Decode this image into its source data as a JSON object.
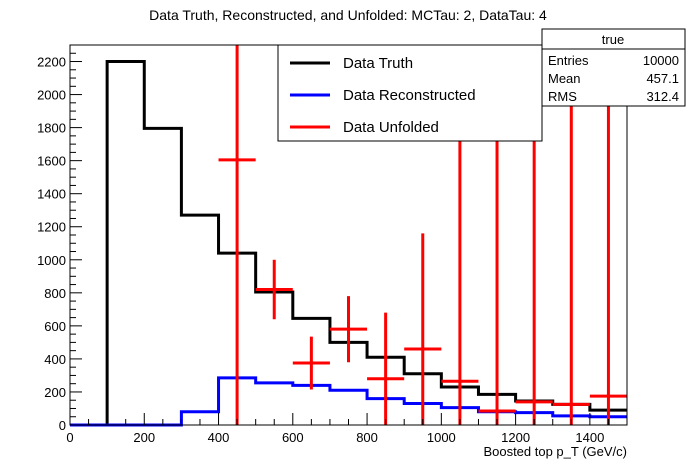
{
  "chart_data": {
    "type": "histogram",
    "title": "Data Truth, Reconstructed, and Unfolded: MCTau: 2, DataTau: 4",
    "xlabel": "Boosted top p_T (GeV/c)",
    "ylabel": "",
    "xlim": [
      0,
      1500
    ],
    "ylim": [
      0,
      2300
    ],
    "xticks": [
      0,
      200,
      400,
      600,
      800,
      1000,
      1200,
      1400
    ],
    "yticks": [
      0,
      200,
      400,
      600,
      800,
      1000,
      1200,
      1400,
      1600,
      1800,
      2000,
      2200
    ],
    "bin_edges": [
      0,
      100,
      200,
      300,
      400,
      500,
      600,
      700,
      800,
      900,
      1000,
      1100,
      1200,
      1300,
      1400,
      1500
    ],
    "series": [
      {
        "name": "Data Truth",
        "style": "step",
        "color": "#000000",
        "values": [
          0,
          2200,
          1795,
          1270,
          1040,
          805,
          645,
          500,
          410,
          310,
          230,
          185,
          145,
          125,
          90
        ]
      },
      {
        "name": "Data Reconstructed",
        "style": "step",
        "color": "#0000ff",
        "values": [
          0,
          0,
          0,
          80,
          285,
          255,
          240,
          210,
          160,
          130,
          105,
          80,
          75,
          55,
          50
        ]
      },
      {
        "name": "Data Unfolded",
        "style": "errorbar",
        "color": "#ff0000",
        "x": [
          450,
          550,
          650,
          750,
          850,
          950,
          1050,
          1150,
          1250,
          1350,
          1450
        ],
        "values": [
          1605,
          820,
          375,
          580,
          280,
          460,
          265,
          85,
          140,
          125,
          175
        ],
        "errors": [
          2000,
          180,
          160,
          200,
          400,
          700,
          2500,
          2500,
          2500,
          2500,
          2500
        ]
      }
    ],
    "legend": {
      "placement": "top-center",
      "entries": [
        "Data Truth",
        "Data Reconstructed",
        "Data Unfolded"
      ]
    },
    "stats_box": {
      "title": "true",
      "rows": [
        {
          "label": "Entries",
          "value": "10000"
        },
        {
          "label": "Mean",
          "value": "457.1"
        },
        {
          "label": "RMS",
          "value": "312.4"
        }
      ]
    },
    "grid": false
  }
}
